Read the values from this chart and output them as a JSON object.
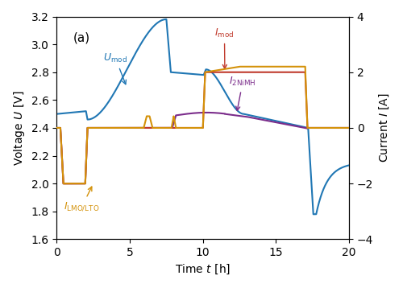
{
  "title": "(a)",
  "xlabel": "Time $t$ [h]",
  "ylabel_left": "Voltage $U$ [V]",
  "ylabel_right": "Current $I$ [A]",
  "xlim": [
    0,
    20
  ],
  "ylim_left": [
    1.6,
    3.2
  ],
  "ylim_right": [
    -4,
    4
  ],
  "xticks": [
    0,
    5,
    10,
    15,
    20
  ],
  "yticks_left": [
    1.6,
    1.8,
    2.0,
    2.2,
    2.4,
    2.6,
    2.8,
    3.0,
    3.2
  ],
  "yticks_right": [
    -4,
    -2,
    0,
    2,
    4
  ],
  "colors": {
    "U_mod": "#2077b4",
    "I_LMO_LTO": "#d4920a",
    "I_2NiMH": "#7b2d8b",
    "I_mod": "#c0392b"
  },
  "figsize": [
    5.0,
    3.58
  ],
  "dpi": 100
}
